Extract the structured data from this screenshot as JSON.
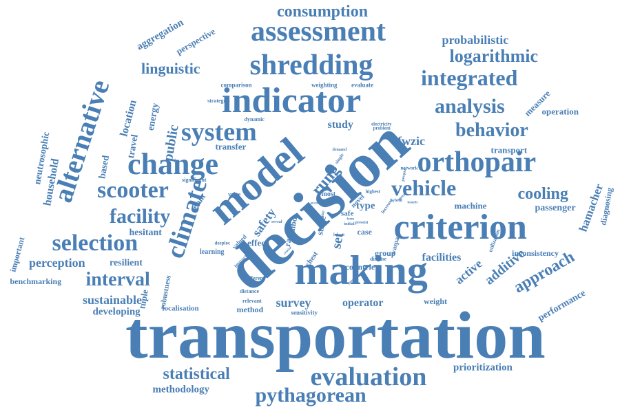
{
  "color": "#4a7fb5",
  "background": "#ffffff",
  "words": [
    "transportation",
    "decision",
    "model",
    "criterion",
    "making",
    "indicator",
    "shredding",
    "assessment",
    "consumption",
    "alternative",
    "change",
    "orthopair",
    "system",
    "integrated",
    "analysis",
    "logarithmic",
    "behavior",
    "probabilistic",
    "linguistic",
    "vehicle",
    "scooter",
    "cooling",
    "climate",
    "facility",
    "selection",
    "evaluation",
    "pythagorean",
    "statistical",
    "methodology",
    "prioritization",
    "interval",
    "perception",
    "sustainable",
    "developing",
    "approach",
    "performance",
    "additive",
    "active",
    "facilities",
    "survey",
    "operator",
    "hamacher",
    "passenger",
    "diagnosing",
    "inconsistency",
    "measure",
    "operation",
    "transport",
    "machine",
    "weight",
    "benchmarking",
    "important",
    "neutrosophic",
    "household",
    "aggregation",
    "perspective",
    "based",
    "location",
    "energy",
    "public",
    "travel",
    "tuple",
    "localisation",
    "hesitant",
    "resilient",
    "robustness",
    "rung",
    "fwzic",
    "study",
    "safety",
    "set",
    "stage",
    "type",
    "case",
    "group",
    "countrie",
    "effect",
    "rank",
    "dibd",
    "transfer",
    "result",
    "comparison",
    "weighting",
    "evaluate",
    "strategies",
    "dynamic",
    "significant",
    "learning",
    "valued",
    "different",
    "relevant",
    "distance",
    "method",
    "sensitivity",
    "impact",
    "deeploc",
    "chest",
    "waspas",
    "utilization",
    "disease",
    "safe",
    "present",
    "initial",
    "most",
    "lowest",
    "novel",
    "highest",
    "increase",
    "network",
    "pesqual",
    "electricity",
    "problem",
    "demand",
    "single",
    "value",
    "hybrid",
    "spread",
    "benefit",
    "access",
    "size",
    "form",
    "reveal",
    "crucial",
    "financial"
  ]
}
